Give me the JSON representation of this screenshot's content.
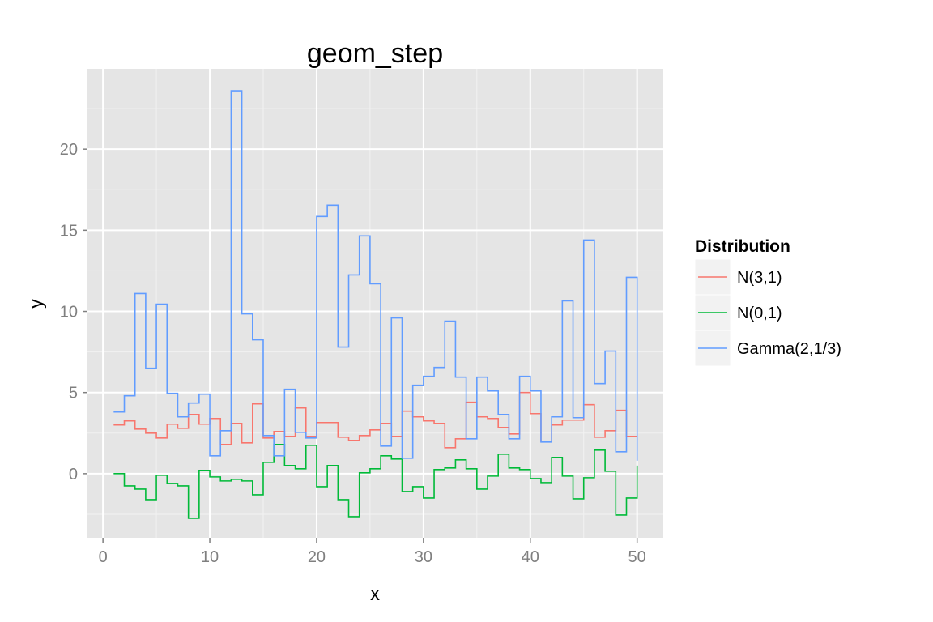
{
  "chart_data": {
    "type": "line",
    "style": "step",
    "title": "geom_step",
    "xlabel": "x",
    "ylabel": "y",
    "xlim": [
      -1.45,
      52.45
    ],
    "ylim": [
      -3.95,
      24.95
    ],
    "x_ticks": [
      0,
      10,
      20,
      30,
      40,
      50
    ],
    "y_ticks": [
      0,
      5,
      10,
      15,
      20
    ],
    "grid": true,
    "legend": {
      "title": "Distribution",
      "position": "right"
    },
    "colors": {
      "panel": "#E5E5E5",
      "grid_major": "#FFFFFF",
      "grid_minor": "#F2F2F2",
      "legend_key": "#F2F2F2",
      "tick": "#7F7F7F"
    },
    "x": [
      1,
      2,
      3,
      4,
      5,
      6,
      7,
      8,
      9,
      10,
      11,
      12,
      13,
      14,
      15,
      16,
      17,
      18,
      19,
      20,
      21,
      22,
      23,
      24,
      25,
      26,
      27,
      28,
      29,
      30,
      31,
      32,
      33,
      34,
      35,
      36,
      37,
      38,
      39,
      40,
      41,
      42,
      43,
      44,
      45,
      46,
      47,
      48,
      49,
      50
    ],
    "series": [
      {
        "name": "N(3,1)",
        "color": "#F8766D",
        "values": [
          3.0,
          3.25,
          2.75,
          2.5,
          2.2,
          3.05,
          2.8,
          3.65,
          3.05,
          3.4,
          1.8,
          3.1,
          1.9,
          4.3,
          2.2,
          2.6,
          2.3,
          4.05,
          2.3,
          3.15,
          3.15,
          2.25,
          2.05,
          2.35,
          2.7,
          3.1,
          2.3,
          3.85,
          3.5,
          3.25,
          3.1,
          1.6,
          2.15,
          4.4,
          3.5,
          3.4,
          2.85,
          2.45,
          5.0,
          3.7,
          2.0,
          3.0,
          3.3,
          3.3,
          4.25,
          2.25,
          2.65,
          3.9,
          2.3,
          2.3
        ]
      },
      {
        "name": "N(0,1)",
        "color": "#00BA38",
        "values": [
          0.0,
          -0.75,
          -0.95,
          -1.6,
          -0.1,
          -0.6,
          -0.75,
          -2.75,
          0.2,
          -0.2,
          -0.45,
          -0.35,
          -0.45,
          -1.3,
          0.7,
          1.8,
          0.5,
          0.3,
          1.75,
          -0.8,
          0.5,
          -1.6,
          -2.65,
          0.05,
          0.3,
          1.1,
          0.9,
          -1.1,
          -0.8,
          -1.5,
          0.25,
          0.35,
          0.85,
          0.3,
          -0.95,
          -0.15,
          1.2,
          0.35,
          0.25,
          -0.3,
          -0.55,
          1.0,
          -0.15,
          -1.55,
          -0.25,
          1.45,
          0.15,
          -2.55,
          -1.5,
          0.5
        ]
      },
      {
        "name": "Gamma(2,1/3)",
        "color": "#619CFF",
        "values": [
          3.8,
          4.8,
          11.1,
          6.5,
          10.45,
          4.95,
          3.5,
          4.35,
          4.9,
          1.1,
          2.65,
          23.6,
          9.85,
          8.25,
          2.35,
          1.1,
          5.2,
          2.55,
          2.2,
          15.85,
          16.55,
          7.8,
          12.25,
          14.65,
          11.7,
          1.7,
          9.6,
          0.95,
          5.45,
          6.0,
          6.55,
          9.4,
          5.95,
          2.15,
          5.95,
          5.1,
          3.65,
          2.15,
          6.0,
          5.1,
          1.95,
          3.5,
          10.65,
          3.45,
          14.4,
          5.55,
          7.55,
          1.35,
          12.1,
          0.8
        ]
      }
    ]
  }
}
